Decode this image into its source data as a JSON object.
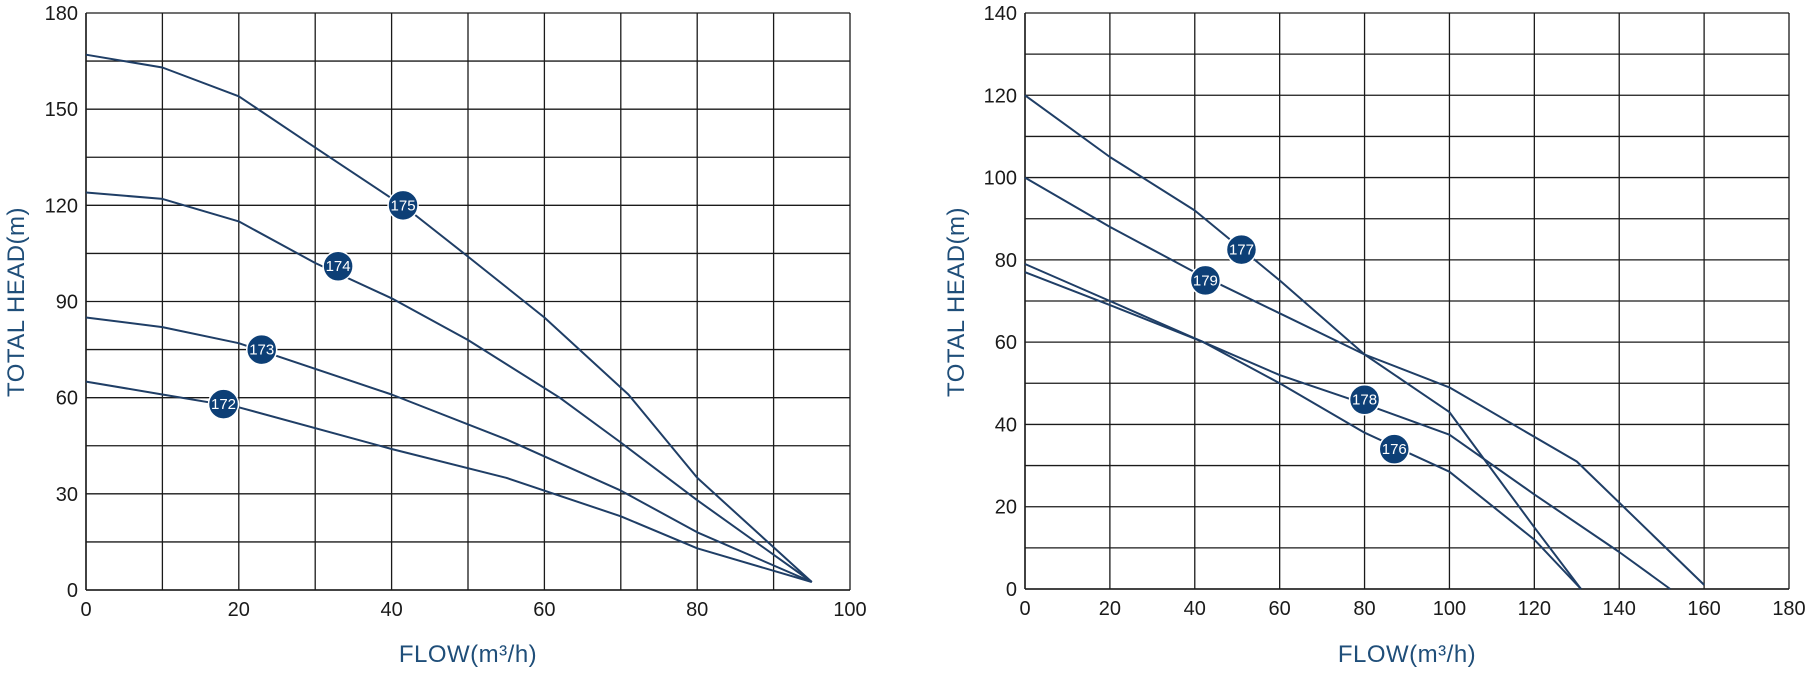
{
  "chart_data": [
    {
      "type": "line",
      "xlabel": "FLOW(m³/h)",
      "ylabel": "TOTAL HEAD(m)",
      "xlim": [
        0,
        100
      ],
      "ylim": [
        0,
        180
      ],
      "xticks": [
        0,
        20,
        40,
        60,
        80,
        100
      ],
      "yticks": [
        0,
        30,
        60,
        90,
        120,
        150,
        180
      ],
      "grid": true,
      "series": [
        {
          "name": "172",
          "points": [
            [
              0,
              65
            ],
            [
              10,
              61
            ],
            [
              20,
              57
            ],
            [
              40,
              44
            ],
            [
              55,
              35
            ],
            [
              70,
              23
            ],
            [
              80,
              13
            ],
            [
              95,
              2.5
            ]
          ],
          "label_at": [
            18,
            58
          ]
        },
        {
          "name": "173",
          "points": [
            [
              0,
              85
            ],
            [
              10,
              82
            ],
            [
              20,
              77
            ],
            [
              40,
              61
            ],
            [
              55,
              47
            ],
            [
              70,
              31
            ],
            [
              80,
              18
            ],
            [
              95,
              2.5
            ]
          ],
          "label_at": [
            23,
            75
          ]
        },
        {
          "name": "174",
          "points": [
            [
              0,
              124
            ],
            [
              10,
              122
            ],
            [
              20,
              115
            ],
            [
              30,
              102
            ],
            [
              40,
              91
            ],
            [
              50,
              78
            ],
            [
              62,
              60
            ],
            [
              70,
              46
            ],
            [
              80,
              28
            ],
            [
              95,
              2.5
            ]
          ],
          "label_at": [
            33,
            101
          ]
        },
        {
          "name": "175",
          "points": [
            [
              0,
              167
            ],
            [
              10,
              163
            ],
            [
              20,
              154
            ],
            [
              30,
              138
            ],
            [
              42,
              119
            ],
            [
              50,
              104
            ],
            [
              60,
              85
            ],
            [
              71,
              61
            ],
            [
              80,
              35
            ],
            [
              95,
              2.5
            ]
          ],
          "label_at": [
            41.5,
            120
          ]
        }
      ]
    },
    {
      "type": "line",
      "xlabel": "FLOW(m³/h)",
      "ylabel": "TOTAL HEAD(m)",
      "xlim": [
        0,
        180
      ],
      "ylim": [
        0,
        140
      ],
      "xticks": [
        0,
        20,
        40,
        60,
        80,
        100,
        120,
        140,
        160,
        180
      ],
      "yticks": [
        0,
        20,
        40,
        60,
        80,
        100,
        120,
        140
      ],
      "grid": true,
      "series": [
        {
          "name": "176",
          "points": [
            [
              0,
              77
            ],
            [
              20,
              69
            ],
            [
              42,
              60
            ],
            [
              60,
              50
            ],
            [
              80,
              38
            ],
            [
              100,
              28.5
            ],
            [
              120,
              12
            ],
            [
              131,
              0
            ]
          ],
          "label_at": [
            87,
            34
          ]
        },
        {
          "name": "177",
          "points": [
            [
              0,
              120
            ],
            [
              20,
              105
            ],
            [
              40,
              92
            ],
            [
              60,
              75
            ],
            [
              80,
              57
            ],
            [
              100,
              43
            ],
            [
              120,
              15
            ],
            [
              131,
              0
            ]
          ],
          "label_at": [
            51,
            82.5
          ]
        },
        {
          "name": "178",
          "points": [
            [
              0,
              79
            ],
            [
              20,
              70
            ],
            [
              42,
              60
            ],
            [
              60,
              52
            ],
            [
              80,
              45
            ],
            [
              100,
              37.5
            ],
            [
              120,
              23
            ],
            [
              140,
              9
            ],
            [
              152,
              0
            ]
          ],
          "label_at": [
            80,
            46
          ]
        },
        {
          "name": "179",
          "points": [
            [
              0,
              100
            ],
            [
              20,
              88
            ],
            [
              40,
              77
            ],
            [
              60,
              67
            ],
            [
              80,
              57
            ],
            [
              100,
              49
            ],
            [
              130,
              31
            ],
            [
              160,
              1
            ]
          ],
          "label_at": [
            42.5,
            75
          ]
        }
      ]
    }
  ]
}
